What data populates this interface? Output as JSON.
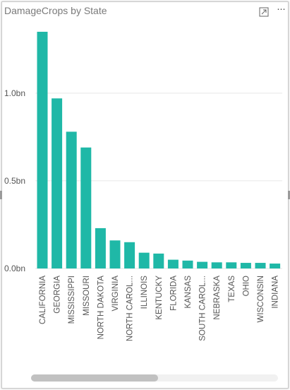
{
  "visual": {
    "title": "DamageCrops by State",
    "focus_icon": "focus-mode-icon",
    "more_icon": "more-options-icon",
    "more_glyph": "···"
  },
  "colors": {
    "bar": "#1FB8A7",
    "grid": "#e6e6e6",
    "axis_text": "#555555"
  },
  "chart_data": {
    "type": "bar",
    "title": "DamageCrops by State",
    "xlabel": "",
    "ylabel": "",
    "ylim": [
      0,
      1.37
    ],
    "yticks": [
      {
        "value": 0,
        "label": "0.0bn"
      },
      {
        "value": 0.5,
        "label": "0.5bn"
      },
      {
        "value": 1.0,
        "label": "1.0bn"
      }
    ],
    "grid": true,
    "categories": [
      "CALIFORNIA",
      "GEORGIA",
      "MISSISSIPPI",
      "MISSOURI",
      "NORTH DAKOTA",
      "VIRGINIA",
      "NORTH CAROL...",
      "ILLINOIS",
      "KENTUCKY",
      "FLORIDA",
      "KANSAS",
      "SOUTH CAROL...",
      "NEBRASKA",
      "TEXAS",
      "OHIO",
      "WISCONSIN",
      "INDIANA"
    ],
    "values": [
      1.35,
      0.97,
      0.78,
      0.69,
      0.23,
      0.16,
      0.15,
      0.09,
      0.085,
      0.05,
      0.045,
      0.038,
      0.035,
      0.035,
      0.032,
      0.032,
      0.028
    ]
  }
}
